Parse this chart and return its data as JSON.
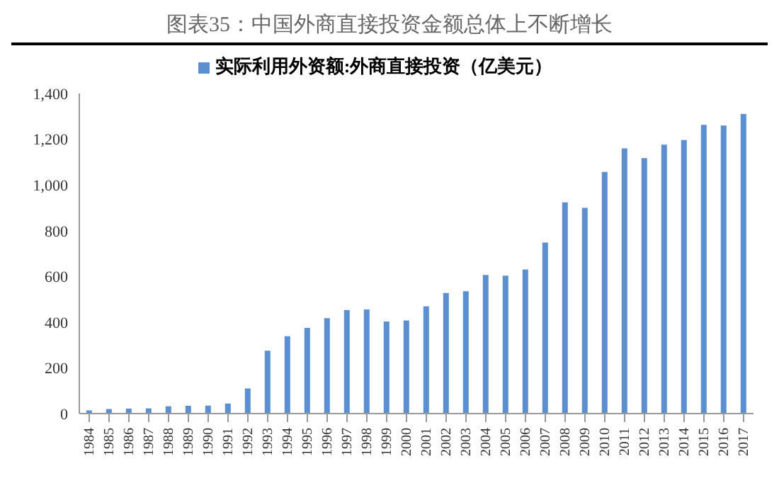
{
  "chart_data": {
    "type": "bar",
    "title": "图表35：中国外商直接投资金额总体上不断增长",
    "categories": [
      "1984",
      "1985",
      "1986",
      "1987",
      "1988",
      "1989",
      "1990",
      "1991",
      "1992",
      "1993",
      "1994",
      "1995",
      "1996",
      "1997",
      "1998",
      "1999",
      "2000",
      "2001",
      "2002",
      "2003",
      "2004",
      "2005",
      "2006",
      "2007",
      "2008",
      "2009",
      "2010",
      "2011",
      "2012",
      "2013",
      "2014",
      "2015",
      "2016",
      "2017"
    ],
    "series": [
      {
        "name": "实际利用外资额:外商直接投资（亿美元）",
        "color": "#5b8fd0",
        "values": [
          14,
          20,
          22,
          23,
          32,
          34,
          35,
          44,
          110,
          275,
          338,
          375,
          417,
          453,
          455,
          403,
          407,
          469,
          527,
          535,
          606,
          603,
          630,
          748,
          924,
          900,
          1057,
          1160,
          1117,
          1176,
          1196,
          1263,
          1260,
          1310
        ]
      }
    ],
    "ylim": [
      0,
      1400
    ],
    "yticks": [
      {
        "value": 0,
        "label": "0"
      },
      {
        "value": 200,
        "label": "200"
      },
      {
        "value": 400,
        "label": "400"
      },
      {
        "value": 600,
        "label": "600"
      },
      {
        "value": 800,
        "label": "800"
      },
      {
        "value": 1000,
        "label": "1,000"
      },
      {
        "value": 1200,
        "label": "1,200"
      },
      {
        "value": 1400,
        "label": "1,400"
      }
    ],
    "grid": false,
    "legend": "top"
  }
}
